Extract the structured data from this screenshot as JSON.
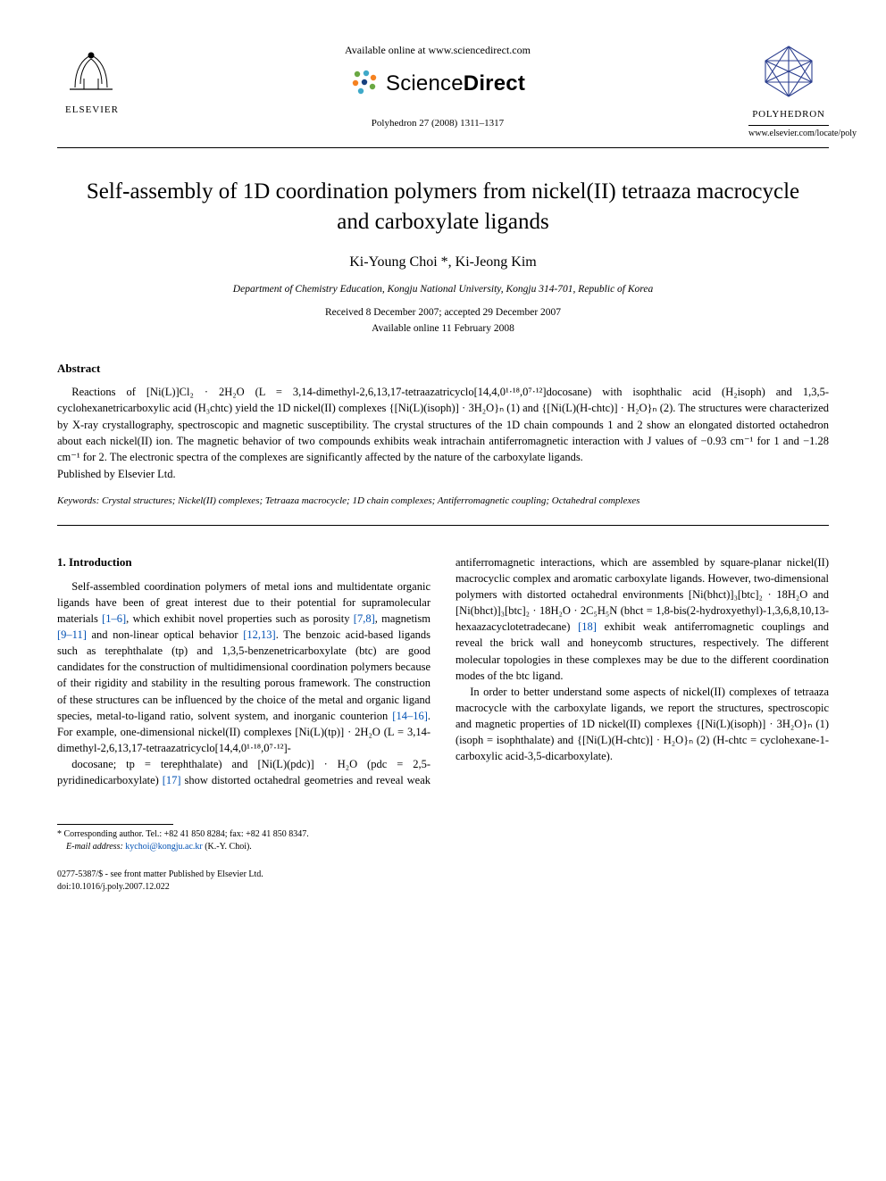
{
  "publisher": {
    "name": "ELSEVIER",
    "available": "Available online at www.sciencedirect.com",
    "platform_prefix": "Science",
    "platform_suffix": "Direct",
    "journal_ref": "Polyhedron 27 (2008) 1311–1317"
  },
  "journal": {
    "name": "POLYHEDRON",
    "locate": "www.elsevier.com/locate/poly"
  },
  "title": "Self-assembly of 1D coordination polymers from nickel(II) tetraaza macrocycle and carboxylate ligands",
  "authors": "Ki-Young Choi *, Ki-Jeong Kim",
  "affiliation": "Department of Chemistry Education, Kongju National University, Kongju 314-701, Republic of Korea",
  "dates": {
    "received_accepted": "Received 8 December 2007; accepted 29 December 2007",
    "online": "Available online 11 February 2008"
  },
  "abstract": {
    "heading": "Abstract",
    "body": "Reactions of [Ni(L)]Cl₂ · 2H₂O (L = 3,14-dimethyl-2,6,13,17-tetraazatricyclo[14,4,0¹·¹⁸,0⁷·¹²]docosane) with isophthalic acid (H₂isoph) and 1,3,5-cyclohexanetricarboxylic acid (H₃chtc) yield the 1D nickel(II) complexes {[Ni(L)(isoph)] · 3H₂O}ₙ (1) and {[Ni(L)(H-chtc)] · H₂O}ₙ (2). The structures were characterized by X-ray crystallography, spectroscopic and magnetic susceptibility. The crystal structures of the 1D chain compounds 1 and 2 show an elongated distorted octahedron about each nickel(II) ion. The magnetic behavior of two compounds exhibits weak intrachain antiferromagnetic interaction with J values of −0.93 cm⁻¹ for 1 and −1.28 cm⁻¹ for 2. The electronic spectra of the complexes are significantly affected by the nature of the carboxylate ligands.",
    "published": "Published by Elsevier Ltd."
  },
  "keywords_label": "Keywords:",
  "keywords": "Crystal structures; Nickel(II) complexes; Tetraaza macrocycle; 1D chain complexes; Antiferromagnetic coupling; Octahedral complexes",
  "introduction": {
    "heading": "1. Introduction",
    "col1": "Self-assembled coordination polymers of metal ions and multidentate organic ligands have been of great interest due to their potential for supramolecular materials [1–6], which exhibit novel properties such as porosity [7,8], magnetism [9–11] and non-linear optical behavior [12,13]. The benzoic acid-based ligands such as terephthalate (tp) and 1,3,5-benzenetricarboxylate (btc) are good candidates for the construction of multidimensional coordination polymers because of their rigidity and stability in the resulting porous framework. The construction of these structures can be influenced by the choice of the metal and organic ligand species, metal-to-ligand ratio, solvent system, and inorganic counterion [14–16]. For example, one-dimensional nickel(II) complexes [Ni(L)(tp)] · 2H₂O (L = 3,14-dimethyl-2,6,13,17-tetraazatricyclo[14,4,0¹·¹⁸,0⁷·¹²]-",
    "col2a": "docosane; tp = terephthalate) and [Ni(L)(pdc)] · H₂O (pdc = 2,5-pyridinedicarboxylate) [17] show distorted octahedral geometries and reveal weak antiferromagnetic interactions, which are assembled by square-planar nickel(II) macrocyclic complex and aromatic carboxylate ligands. However, two-dimensional polymers with distorted octahedral environments [Ni(bhct)]₃[btc]₂ · 18H₂O and [Ni(bhct)]₃[btc]₂ · 18H₂O · 2C₅H₅N (bhct = 1,8-bis(2-hydroxyethyl)-1,3,6,8,10,13-hexaazacyclotetradecane) [18] exhibit weak antiferromagnetic couplings and reveal the brick wall and honeycomb structures, respectively. The different molecular topologies in these complexes may be due to the different coordination modes of the btc ligand.",
    "col2b": "In order to better understand some aspects of nickel(II) complexes of tetraaza macrocycle with the carboxylate ligands, we report the structures, spectroscopic and magnetic properties of 1D nickel(II) complexes {[Ni(L)(isoph)] · 3H₂O}ₙ (1) (isoph = isophthalate) and {[Ni(L)(H-chtc)] · H₂O}ₙ (2) (H-chtc = cyclohexane-1-carboxylic acid-3,5-dicarboxylate)."
  },
  "footnote": {
    "corr": "* Corresponding author. Tel.: +82 41 850 8284; fax: +82 41 850 8347.",
    "email_label": "E-mail address:",
    "email": "kychoi@kongju.ac.kr",
    "email_who": "(K.-Y. Choi)."
  },
  "bottom": {
    "issn": "0277-5387/$ - see front matter Published by Elsevier Ltd.",
    "doi": "doi:10.1016/j.poly.2007.12.022"
  },
  "colors": {
    "text": "#000000",
    "link": "#0050b3",
    "sd_orange": "#f58220",
    "sd_blue": "#18417f",
    "sd_green": "#6aa843",
    "sd_cyan": "#3fa9c9",
    "poly_blue": "#2c3f8f"
  }
}
